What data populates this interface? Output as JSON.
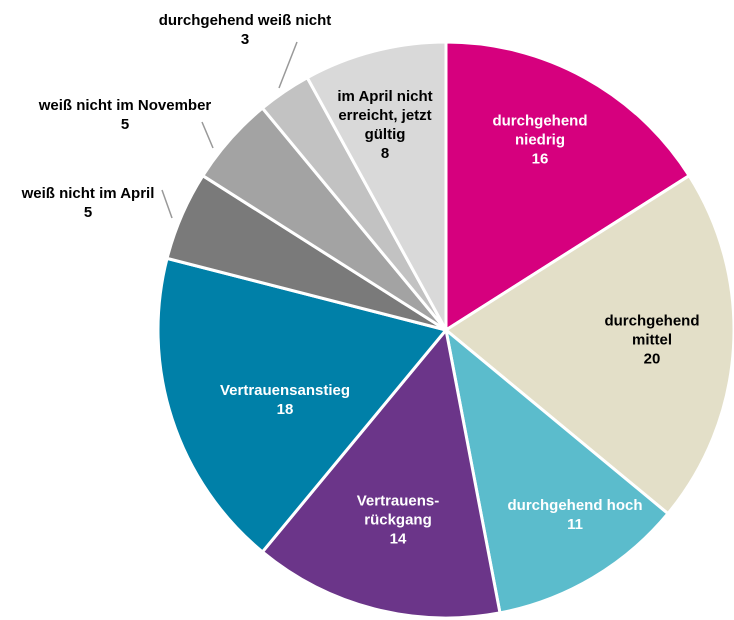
{
  "chart_data": {
    "type": "pie",
    "categories": [
      "durchgehend niedrig",
      "durchgehend mittel",
      "durchgehend hoch",
      "Vertrauens-rückgang",
      "Vertrauensanstieg",
      "weiß nicht im April",
      "weiß nicht im November",
      "durchgehend weiß nicht",
      "im April nicht erreicht, jetzt gültig"
    ],
    "values": [
      16,
      20,
      11,
      14,
      18,
      5,
      5,
      3,
      8
    ],
    "colors": [
      "#d6007e",
      "#e3dfc8",
      "#5bbccc",
      "#6b3589",
      "#0080a8",
      "#7a7a7a",
      "#a3a3a3",
      "#c2c2c2",
      "#d9d9d9"
    ]
  }
}
